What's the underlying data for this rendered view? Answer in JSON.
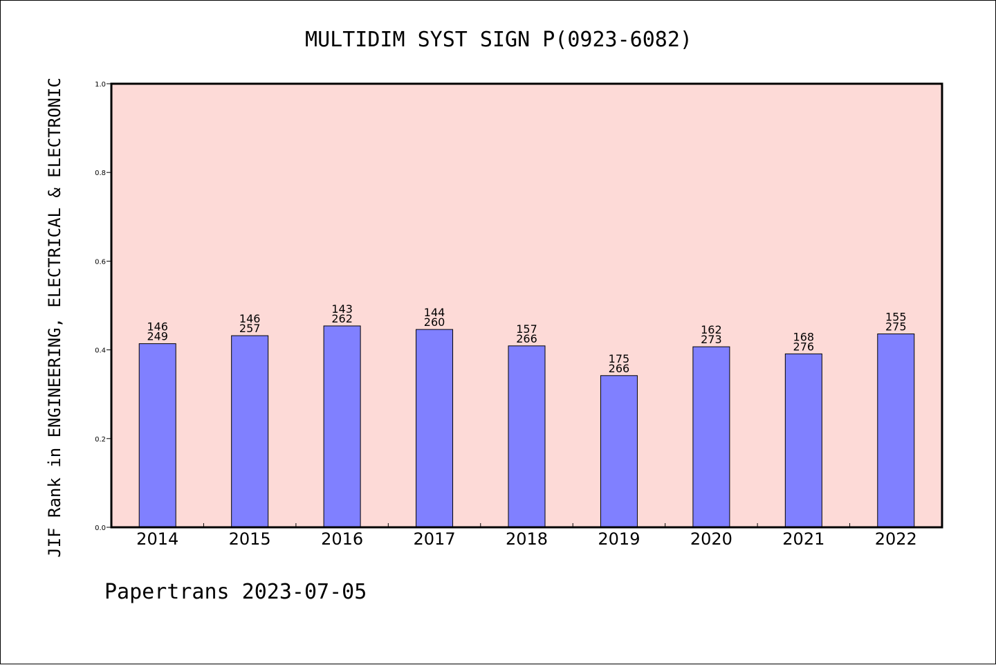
{
  "chart_data": {
    "type": "bar",
    "title": "MULTIDIM SYST SIGN P(0923-6082)",
    "ylabel": "JIF Rank in ENGINEERING, ELECTRICAL & ELECTRONIC",
    "xlabel": "",
    "footer": "Papertrans 2023-07-05",
    "ylim": [
      0,
      1.0
    ],
    "yticks": [
      "0.0",
      "0.2",
      "0.4",
      "0.6",
      "0.8",
      "1.0"
    ],
    "categories": [
      "2014",
      "2015",
      "2016",
      "2017",
      "2018",
      "2019",
      "2020",
      "2021",
      "2022"
    ],
    "values": [
      0.414,
      0.432,
      0.454,
      0.446,
      0.409,
      0.342,
      0.407,
      0.391,
      0.436
    ],
    "rank": [
      "146",
      "146",
      "143",
      "144",
      "157",
      "175",
      "162",
      "168",
      "155"
    ],
    "total": [
      "249",
      "257",
      "262",
      "260",
      "266",
      "266",
      "273",
      "276",
      "275"
    ],
    "grid": false,
    "colors": {
      "plot_background": "#FDDAD7",
      "bar": "#8080FF",
      "bar_stroke": "#000000"
    }
  }
}
